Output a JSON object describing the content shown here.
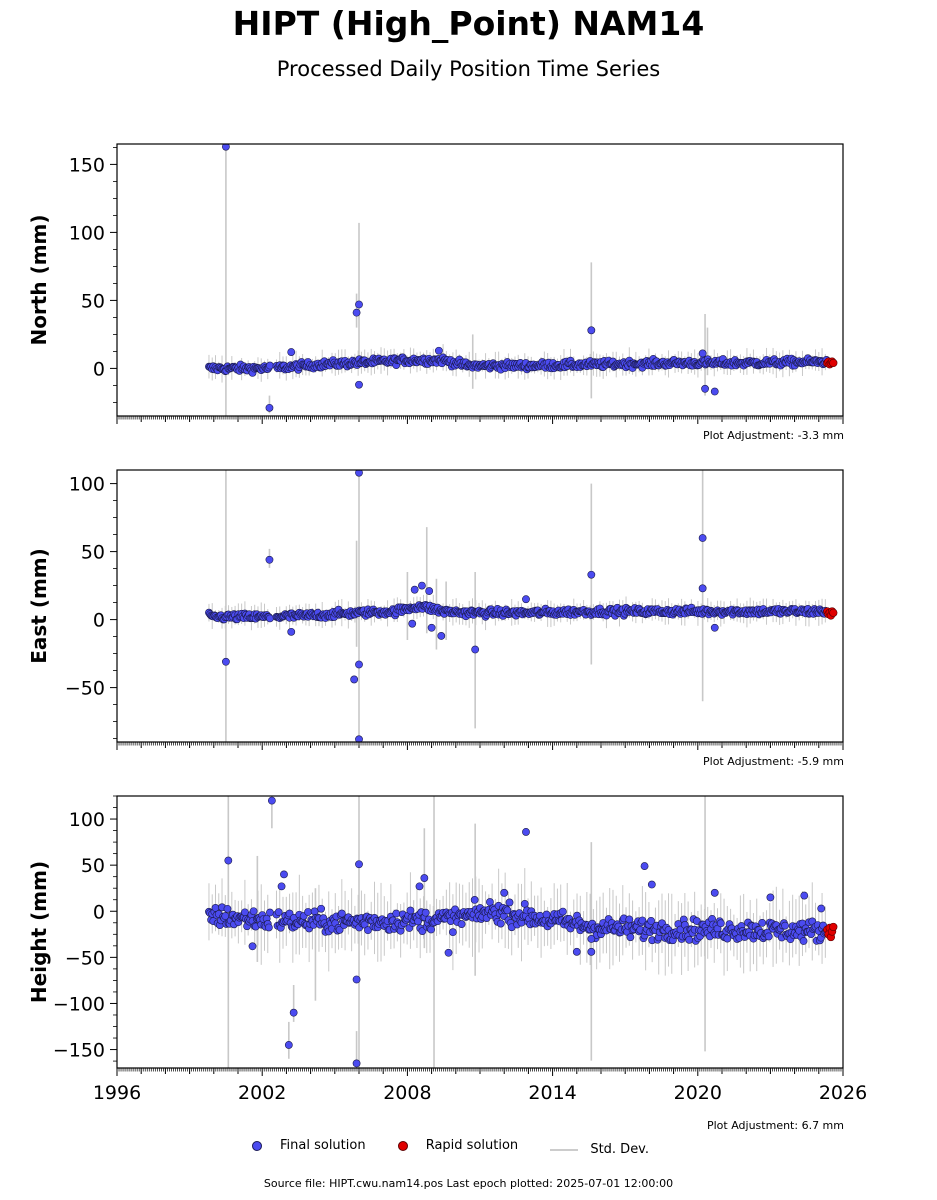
{
  "figure": {
    "title": "HIPT (High_Point) NAM14",
    "subtitle": "Processed Daily Position Time Series",
    "source": "Source file: HIPT.cwu.nam14.pos  Last epoch plotted: 2025-07-01 12:00:00"
  },
  "legend": {
    "final": "Final solution",
    "rapid": "Rapid solution",
    "std": "Std. Dev."
  },
  "colors": {
    "final": "#4b4bf0",
    "rapid": "#e00000",
    "std": "#c8c8c8"
  },
  "chart_data": [
    {
      "type": "scatter",
      "ylabel": "North (mm)",
      "xlim": [
        1996,
        2026
      ],
      "ylim": [
        -35,
        165
      ],
      "yticks": [
        0,
        50,
        100,
        150
      ],
      "adjustment": "Plot Adjustment: -3.3 mm",
      "trend": [
        [
          1999.8,
          0
        ],
        [
          2002.3,
          0
        ],
        [
          2004.5,
          3
        ],
        [
          2008.0,
          6
        ],
        [
          2009.5,
          6
        ],
        [
          2010.5,
          2
        ],
        [
          2013.0,
          2
        ],
        [
          2016.0,
          3
        ],
        [
          2019.0,
          4
        ],
        [
          2022.0,
          4
        ],
        [
          2025.5,
          5
        ]
      ],
      "noise": 2.5,
      "outliers": [
        [
          2000.5,
          163
        ],
        [
          2002.3,
          -29
        ],
        [
          2003.2,
          12
        ],
        [
          2005.9,
          41
        ],
        [
          2006.0,
          47
        ],
        [
          2006.0,
          -12
        ],
        [
          2015.6,
          28
        ],
        [
          2020.3,
          -15
        ],
        [
          2020.7,
          -17
        ],
        [
          2009.3,
          13
        ],
        [
          2020.2,
          11
        ]
      ],
      "std_spikes": [
        [
          2000.5,
          -35,
          165
        ],
        [
          2005.9,
          30,
          55
        ],
        [
          2006.0,
          0,
          107
        ],
        [
          2010.7,
          -15,
          25
        ],
        [
          2015.6,
          -22,
          78
        ],
        [
          2020.3,
          -20,
          40
        ],
        [
          2020.4,
          -5,
          30
        ],
        [
          2002.3,
          -33,
          -20
        ]
      ],
      "rapid": [
        [
          2025.35,
          4
        ],
        [
          2025.4,
          5
        ],
        [
          2025.45,
          3
        ],
        [
          2025.5,
          4
        ],
        [
          2025.55,
          5
        ],
        [
          2025.6,
          4
        ]
      ]
    },
    {
      "type": "scatter",
      "ylabel": "East (mm)",
      "xlim": [
        1996,
        2026
      ],
      "ylim": [
        -90,
        110
      ],
      "yticks": [
        -50,
        0,
        50,
        100
      ],
      "adjustment": "Plot Adjustment: -5.9 mm",
      "trend": [
        [
          1999.8,
          2
        ],
        [
          2002.3,
          2
        ],
        [
          2004.0,
          3
        ],
        [
          2006.0,
          5
        ],
        [
          2007.5,
          6
        ],
        [
          2008.5,
          10
        ],
        [
          2009.5,
          6
        ],
        [
          2010.5,
          5
        ],
        [
          2013.0,
          5
        ],
        [
          2016.0,
          6
        ],
        [
          2020.0,
          6
        ],
        [
          2025.5,
          6
        ]
      ],
      "noise": 2.5,
      "outliers": [
        [
          2000.5,
          -31
        ],
        [
          2002.3,
          44
        ],
        [
          2003.2,
          -9
        ],
        [
          2005.8,
          -44
        ],
        [
          2006.0,
          -33
        ],
        [
          2006.0,
          108
        ],
        [
          2006.0,
          -88
        ],
        [
          2008.6,
          25
        ],
        [
          2008.9,
          21
        ],
        [
          2008.3,
          22
        ],
        [
          2009.4,
          -12
        ],
        [
          2010.8,
          -22
        ],
        [
          2012.9,
          15
        ],
        [
          2015.6,
          33
        ],
        [
          2020.2,
          60
        ],
        [
          2020.2,
          23
        ],
        [
          2020.7,
          -6
        ],
        [
          2009.0,
          -6
        ],
        [
          2008.2,
          -3
        ]
      ],
      "std_spikes": [
        [
          2000.5,
          -90,
          110
        ],
        [
          2002.3,
          38,
          52
        ],
        [
          2006.0,
          -90,
          110
        ],
        [
          2005.9,
          -20,
          58
        ],
        [
          2010.8,
          -80,
          35
        ],
        [
          2015.6,
          -33,
          100
        ],
        [
          2020.2,
          -60,
          110
        ],
        [
          2008.8,
          -10,
          68
        ],
        [
          2008.0,
          -15,
          35
        ],
        [
          2009.2,
          -22,
          30
        ],
        [
          2009.6,
          -15,
          28
        ]
      ],
      "rapid": [
        [
          2025.35,
          6
        ],
        [
          2025.4,
          4
        ],
        [
          2025.45,
          5
        ],
        [
          2025.5,
          3
        ],
        [
          2025.55,
          6
        ],
        [
          2025.6,
          5
        ]
      ]
    },
    {
      "type": "scatter",
      "ylabel": "Height (mm)",
      "xlim": [
        1996,
        2026
      ],
      "ylim": [
        -170,
        125
      ],
      "yticks": [
        -150,
        -100,
        -50,
        0,
        50,
        100
      ],
      "xticks": [
        1996,
        2002,
        2008,
        2014,
        2020,
        2026
      ],
      "adjustment": "Plot Adjustment: 6.7 mm",
      "trend": [
        [
          1999.8,
          -5
        ],
        [
          2002.3,
          -10
        ],
        [
          2005.0,
          -12
        ],
        [
          2008.0,
          -10
        ],
        [
          2010.0,
          -8
        ],
        [
          2011.5,
          0
        ],
        [
          2014.0,
          -10
        ],
        [
          2016.0,
          -18
        ],
        [
          2019.0,
          -20
        ],
        [
          2022.0,
          -20
        ],
        [
          2025.5,
          -22
        ]
      ],
      "noise": 11,
      "outliers": [
        [
          2000.6,
          55
        ],
        [
          2002.4,
          120
        ],
        [
          2002.8,
          27
        ],
        [
          2002.9,
          40
        ],
        [
          2003.1,
          -145
        ],
        [
          2003.3,
          -110
        ],
        [
          2005.9,
          -74
        ],
        [
          2006.0,
          51
        ],
        [
          2005.9,
          -165
        ],
        [
          2008.5,
          27
        ],
        [
          2008.7,
          36
        ],
        [
          2009.7,
          -45
        ],
        [
          2012.0,
          20
        ],
        [
          2012.9,
          86
        ],
        [
          2015.0,
          -44
        ],
        [
          2015.6,
          -44
        ],
        [
          2015.6,
          -30
        ],
        [
          2017.8,
          49
        ],
        [
          2018.1,
          29
        ],
        [
          2020.7,
          20
        ],
        [
          2023.0,
          15
        ],
        [
          2024.4,
          17
        ],
        [
          2025.1,
          3
        ],
        [
          2001.6,
          -38
        ]
      ],
      "std_spikes": [
        [
          2000.6,
          -170,
          125
        ],
        [
          2002.4,
          90,
          125
        ],
        [
          2003.1,
          -160,
          -120
        ],
        [
          2003.3,
          -120,
          -80
        ],
        [
          2005.9,
          -170,
          -130
        ],
        [
          2006.0,
          -170,
          125
        ],
        [
          2008.7,
          -40,
          90
        ],
        [
          2009.1,
          -170,
          125
        ],
        [
          2010.8,
          -70,
          95
        ],
        [
          2015.6,
          -162,
          75
        ],
        [
          2020.3,
          -152,
          125
        ],
        [
          2004.2,
          -97,
          25
        ],
        [
          2001.8,
          -55,
          60
        ]
      ],
      "rapid": [
        [
          2025.35,
          -20
        ],
        [
          2025.4,
          -25
        ],
        [
          2025.45,
          -18
        ],
        [
          2025.5,
          -28
        ],
        [
          2025.55,
          -22
        ],
        [
          2025.6,
          -17
        ]
      ]
    }
  ]
}
